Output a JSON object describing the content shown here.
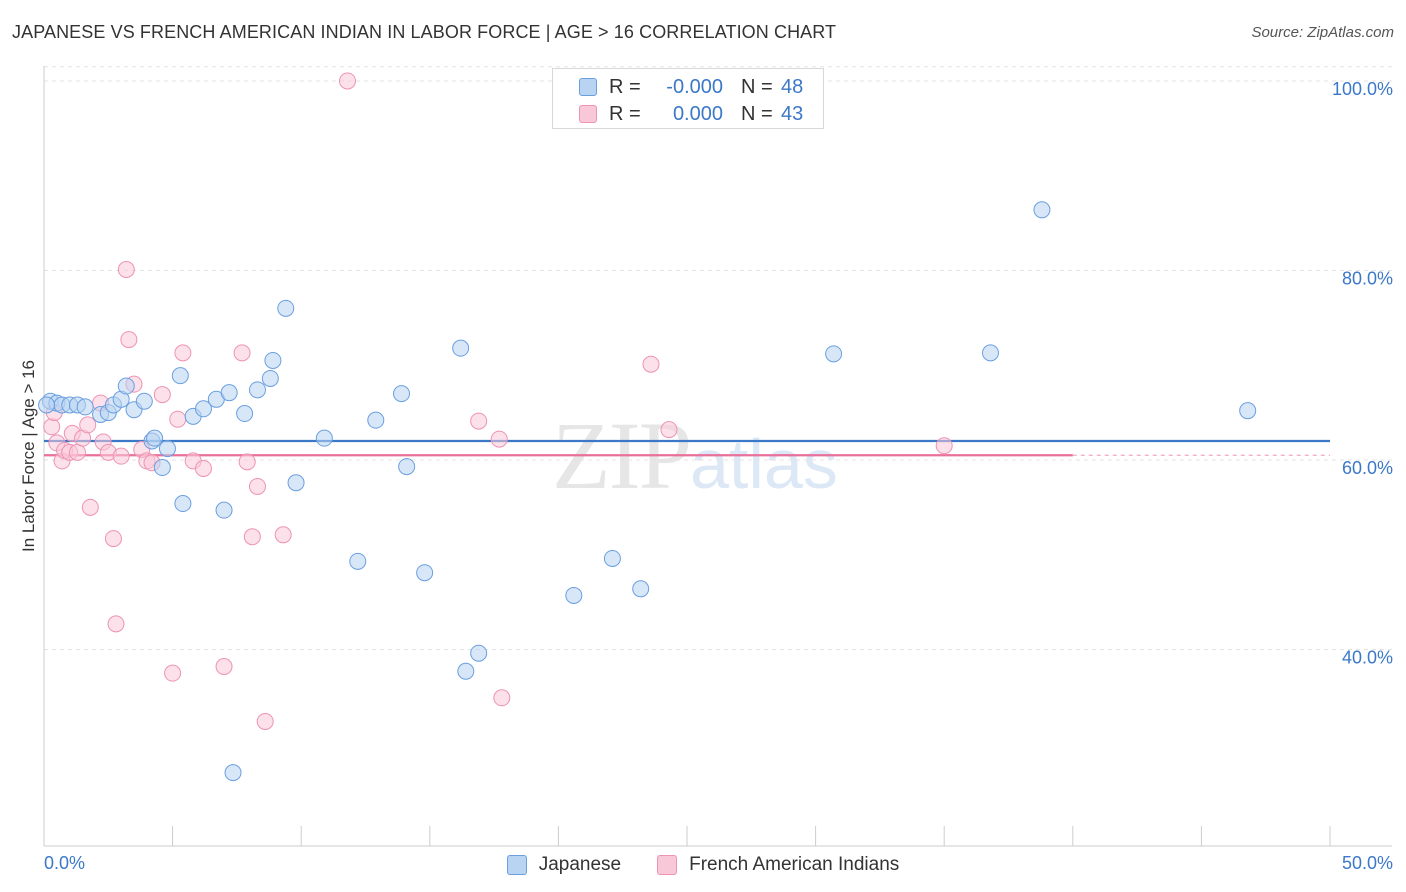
{
  "title": "JAPANESE VS FRENCH AMERICAN INDIAN IN LABOR FORCE | AGE > 16 CORRELATION CHART",
  "source": "Source: ZipAtlas.com",
  "watermark": {
    "zip": "ZIP",
    "atlas": "atlas"
  },
  "colors": {
    "japanese_fill": "#b8d4f2",
    "japanese_stroke": "#6a9fe0",
    "japanese_line": "#3b78c8",
    "french_fill": "#f9c8d8",
    "french_stroke": "#ee93b2",
    "french_line": "#e8709a",
    "axis_text": "#3b78c8"
  },
  "legend_top": [
    {
      "r_label": "R =",
      "r_value": "-0.000",
      "n_label": "N =",
      "n_value": "48"
    },
    {
      "r_label": "R =",
      "r_value": "0.000",
      "n_label": "N =",
      "n_value": "43"
    }
  ],
  "legend_bottom": [
    "Japanese",
    "French American Indians"
  ],
  "chart_data": {
    "type": "scatter",
    "title": "JAPANESE VS FRENCH AMERICAN INDIAN IN LABOR FORCE | AGE > 16 CORRELATION CHART",
    "xlabel": "",
    "ylabel": "In Labor Force | Age > 16",
    "xlim": [
      0,
      50
    ],
    "ylim": [
      22,
      102
    ],
    "x_tick_labels": [
      "0.0%",
      "50.0%"
    ],
    "y_ticks": [
      40,
      60,
      80,
      100
    ],
    "y_tick_labels": [
      "40.0%",
      "60.0%",
      "80.0%",
      "100.0%"
    ],
    "grid": "horizontal dashed",
    "legend": "top-center and bottom",
    "series": [
      {
        "name": "Japanese",
        "trend_y": 62.0,
        "trend_x": [
          0,
          50
        ],
        "points": [
          [
            0.25,
            66.2
          ],
          [
            0.5,
            66.0
          ],
          [
            0.7,
            65.8
          ],
          [
            1.0,
            65.8
          ],
          [
            1.3,
            65.8
          ],
          [
            1.6,
            65.6
          ],
          [
            2.2,
            64.8
          ],
          [
            2.5,
            65.0
          ],
          [
            2.7,
            65.8
          ],
          [
            3.0,
            66.4
          ],
          [
            3.2,
            67.8
          ],
          [
            3.5,
            65.3
          ],
          [
            3.9,
            66.2
          ],
          [
            4.2,
            62.0
          ],
          [
            4.3,
            62.3
          ],
          [
            4.6,
            59.2
          ],
          [
            4.8,
            61.2
          ],
          [
            5.3,
            68.9
          ],
          [
            5.4,
            55.4
          ],
          [
            5.8,
            64.6
          ],
          [
            6.2,
            65.4
          ],
          [
            6.7,
            66.4
          ],
          [
            7.0,
            54.7
          ],
          [
            7.2,
            67.1
          ],
          [
            7.35,
            27.0
          ],
          [
            7.8,
            64.9
          ],
          [
            8.3,
            67.4
          ],
          [
            8.8,
            68.6
          ],
          [
            8.9,
            70.5
          ],
          [
            9.4,
            76.0
          ],
          [
            9.8,
            57.6
          ],
          [
            10.9,
            62.3
          ],
          [
            12.2,
            49.3
          ],
          [
            12.9,
            64.2
          ],
          [
            13.9,
            67.0
          ],
          [
            14.1,
            59.3
          ],
          [
            14.8,
            48.1
          ],
          [
            16.2,
            71.8
          ],
          [
            16.4,
            37.7
          ],
          [
            16.9,
            39.6
          ],
          [
            20.6,
            45.7
          ],
          [
            22.1,
            49.6
          ],
          [
            23.2,
            46.4
          ],
          [
            30.7,
            71.2
          ],
          [
            36.8,
            71.3
          ],
          [
            38.8,
            86.4
          ],
          [
            46.8,
            65.2
          ],
          [
            0.1,
            65.8
          ]
        ]
      },
      {
        "name": "French American Indians",
        "trend_y": 60.5,
        "trend_x": [
          0,
          40
        ],
        "points": [
          [
            0.3,
            63.5
          ],
          [
            0.5,
            61.8
          ],
          [
            0.7,
            59.9
          ],
          [
            0.8,
            61.0
          ],
          [
            1.0,
            60.8
          ],
          [
            1.1,
            62.8
          ],
          [
            1.3,
            60.8
          ],
          [
            1.5,
            62.3
          ],
          [
            1.7,
            63.7
          ],
          [
            1.8,
            55.0
          ],
          [
            2.2,
            66.0
          ],
          [
            2.3,
            61.9
          ],
          [
            2.5,
            60.8
          ],
          [
            2.7,
            51.7
          ],
          [
            2.8,
            42.7
          ],
          [
            3.0,
            60.4
          ],
          [
            3.2,
            80.1
          ],
          [
            3.3,
            72.7
          ],
          [
            3.5,
            68.0
          ],
          [
            3.8,
            61.1
          ],
          [
            4.0,
            59.9
          ],
          [
            4.2,
            59.7
          ],
          [
            4.6,
            66.9
          ],
          [
            5.0,
            37.5
          ],
          [
            5.2,
            64.3
          ],
          [
            5.4,
            71.3
          ],
          [
            5.8,
            59.9
          ],
          [
            6.2,
            59.1
          ],
          [
            7.0,
            38.2
          ],
          [
            7.7,
            71.3
          ],
          [
            7.9,
            59.8
          ],
          [
            8.1,
            51.9
          ],
          [
            8.3,
            57.2
          ],
          [
            8.6,
            32.4
          ],
          [
            9.3,
            52.1
          ],
          [
            11.8,
            100.0
          ],
          [
            16.9,
            64.1
          ],
          [
            17.7,
            62.2
          ],
          [
            17.8,
            34.9
          ],
          [
            23.6,
            70.1
          ],
          [
            24.3,
            63.2
          ],
          [
            35.0,
            61.5
          ],
          [
            0.4,
            65.0
          ]
        ]
      }
    ]
  }
}
